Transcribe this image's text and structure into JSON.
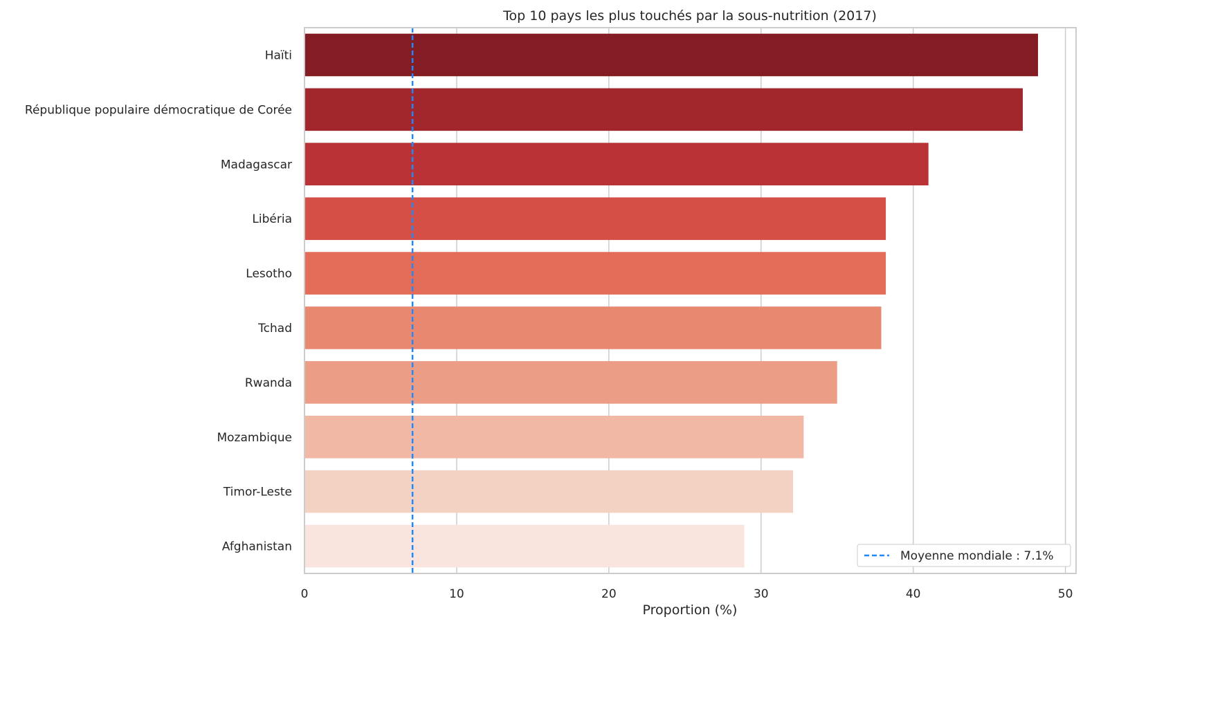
{
  "chart_data": {
    "type": "bar",
    "orientation": "horizontal",
    "title": "Top 10 pays les plus touchés par la sous-nutrition (2017)",
    "xlabel": "Proportion (%)",
    "ylabel": "",
    "categories": [
      "Haïti",
      "République populaire démocratique de Corée",
      "Madagascar",
      "Libéria",
      "Lesotho",
      "Tchad",
      "Rwanda",
      "Mozambique",
      "Timor-Leste",
      "Afghanistan"
    ],
    "values": [
      48.2,
      47.2,
      41.0,
      38.2,
      38.2,
      37.9,
      35.0,
      32.8,
      32.1,
      28.9
    ],
    "colors": [
      "#841c24",
      "#a2272d",
      "#b93336",
      "#d44f45",
      "#e26c58",
      "#e88871",
      "#eb9d86",
      "#f0b8a5",
      "#f3d1c3",
      "#f9e5de"
    ],
    "xlim": [
      0,
      50.7
    ],
    "xticks": [
      0,
      10,
      20,
      30,
      40,
      50
    ],
    "grid": true,
    "reference_line": {
      "value": 7.1,
      "label": "Moyenne mondiale : 7.1%",
      "color": "#1e88ff",
      "style": "dashed"
    },
    "legend_position": "bottom-right"
  }
}
